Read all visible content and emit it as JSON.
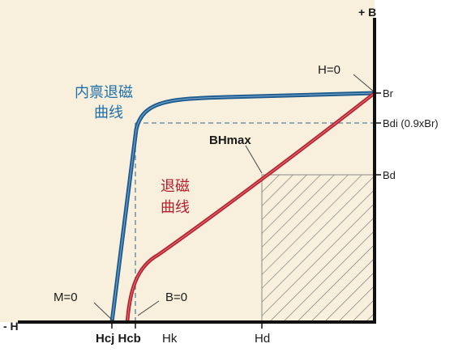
{
  "axes": {
    "y_label": "+ B",
    "x_label": "- H"
  },
  "right_labels": {
    "br": "Br",
    "bdi": "Bdi (0.9xBr)",
    "bd": "Bd"
  },
  "bottom_labels": {
    "hcj_hcb": "Hcj Hcb",
    "hk": "Hk",
    "hd": "Hd"
  },
  "annotations": {
    "h0": "H=0",
    "bhmax": "BHmax",
    "m0": "M=0",
    "b0": "B=0"
  },
  "intrinsic_curve": {
    "line1": "内禀退磁",
    "line2": "曲线",
    "color": "#1f5a8f"
  },
  "normal_curve": {
    "line1": "退磁",
    "line2": "曲线",
    "color": "#b8222f"
  },
  "colors": {
    "background": "#f8f0dc",
    "axis": "#111111",
    "dashed": "#5a7f9a",
    "hatch": "#777777"
  }
}
